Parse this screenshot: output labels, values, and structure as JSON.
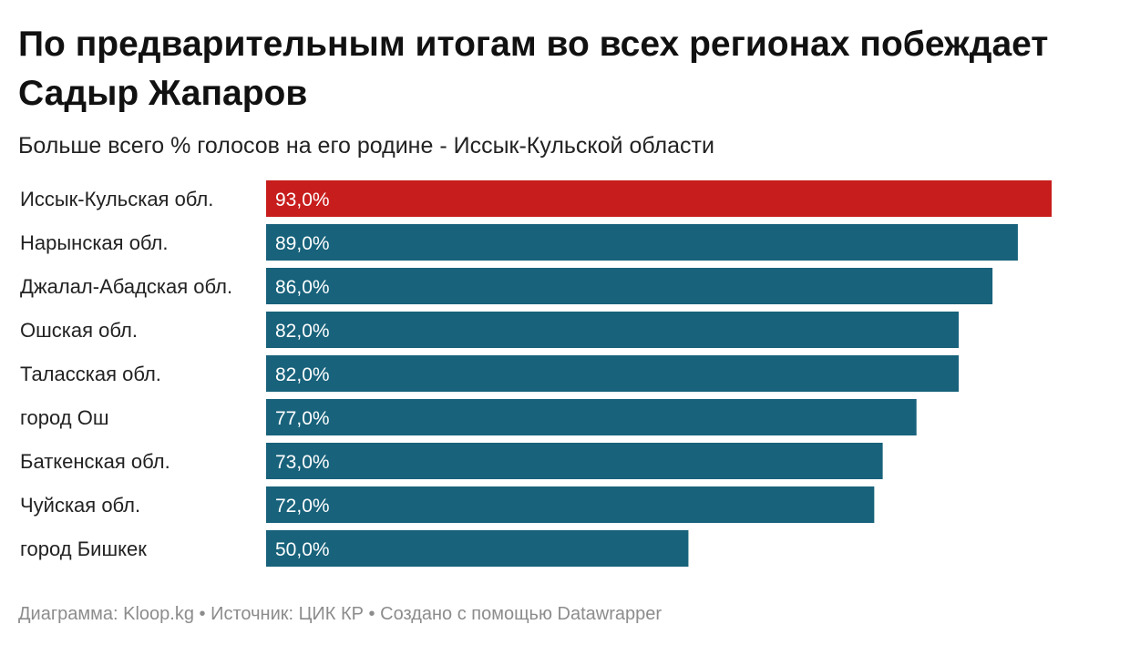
{
  "title": "По предварительным итогам во всех регионах побеждает Садыр Жапаров",
  "subtitle": "Больше всего % голосов на его родине - Иссык-Кульской области",
  "footer": {
    "chart_by_label": "Диаграмма:",
    "chart_by": "Kloop.kg",
    "source_label": "Источник:",
    "source": "ЦИК КР",
    "created_with": "Создано с помощью Datawrapper"
  },
  "colors": {
    "highlight": "#c71e1d",
    "default": "#18627b"
  },
  "chart_data": {
    "type": "bar",
    "orientation": "horizontal",
    "categories": [
      "Иссык-Кульская обл.",
      "Нарынская обл.",
      "Джалал-Абадская обл.",
      "Ошская обл.",
      "Таласская обл.",
      "город Ош",
      "Баткенская обл.",
      "Чуйская обл.",
      "город Бишкек"
    ],
    "values": [
      93.0,
      89.0,
      86.0,
      82.0,
      82.0,
      77.0,
      73.0,
      72.0,
      50.0
    ],
    "value_labels": [
      "93,0%",
      "89,0%",
      "86,0%",
      "82,0%",
      "82,0%",
      "77,0%",
      "73,0%",
      "72,0%",
      "50,0%"
    ],
    "highlighted_index": 0,
    "xlim": [
      0,
      100
    ],
    "grid": false,
    "legend": false
  }
}
